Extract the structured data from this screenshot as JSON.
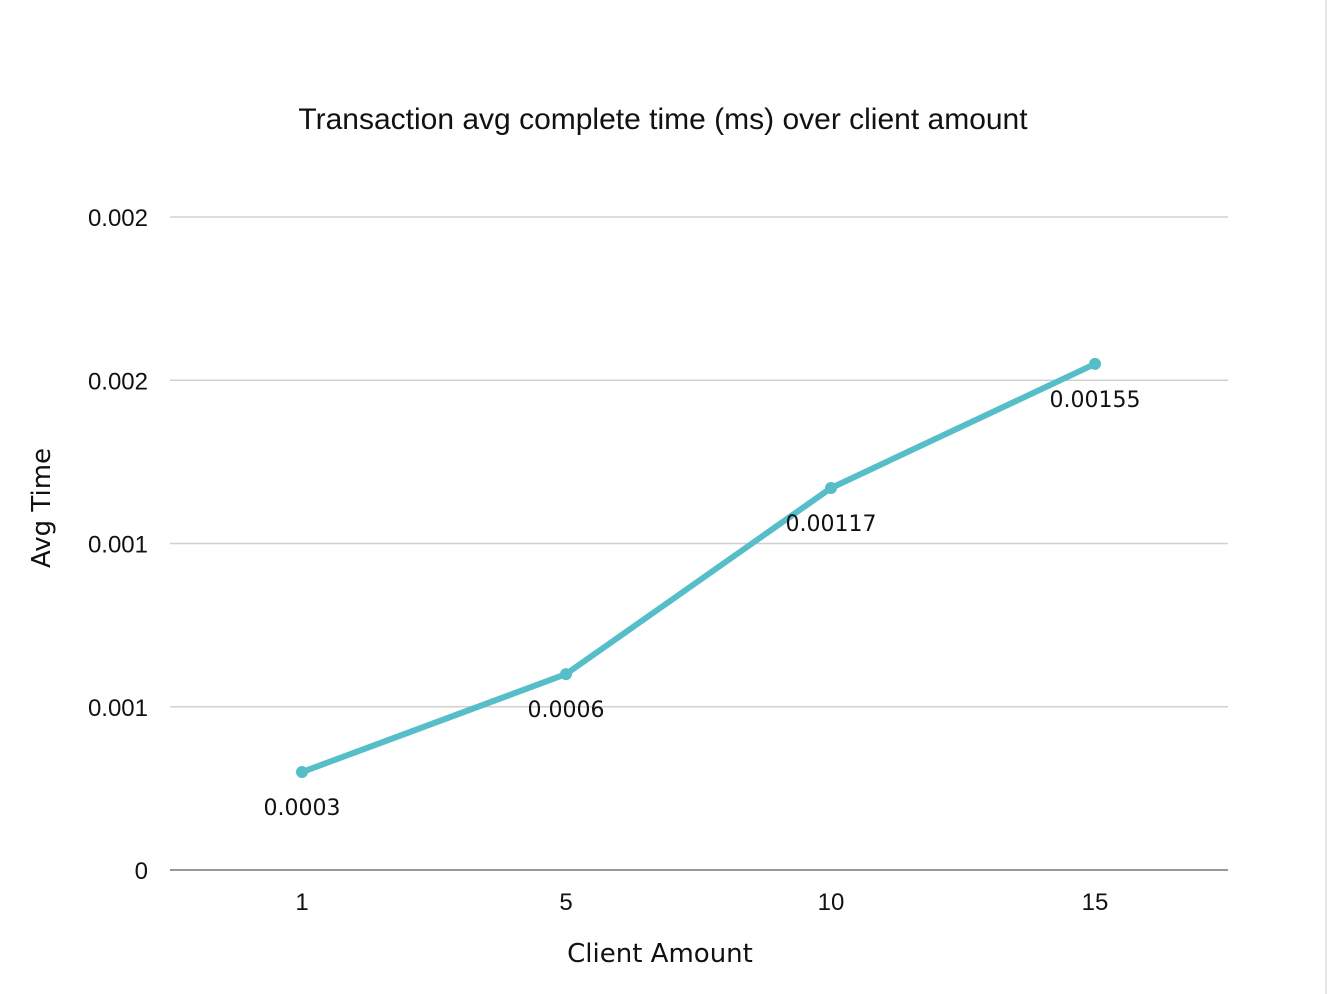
{
  "chart_data": {
    "type": "line",
    "title": "Transaction avg complete time (ms) over client amount",
    "xlabel": "Client Amount",
    "ylabel": "Avg Time",
    "categories": [
      "1",
      "5",
      "10",
      "15"
    ],
    "series": [
      {
        "name": "Avg Time",
        "values": [
          0.0003,
          0.0006,
          0.00117,
          0.00155
        ],
        "labels": [
          "0.0003",
          "0.0006",
          "0.00117",
          "0.00155"
        ],
        "color": "#55bec8"
      }
    ],
    "ylim": [
      0,
      0.002
    ],
    "yticks": [
      0,
      0.0005,
      0.001,
      0.0015,
      0.002
    ],
    "ytick_labels": [
      "0",
      "0.001",
      "0.001",
      "0.002",
      "0.002"
    ],
    "grid": true,
    "legend": "none"
  }
}
